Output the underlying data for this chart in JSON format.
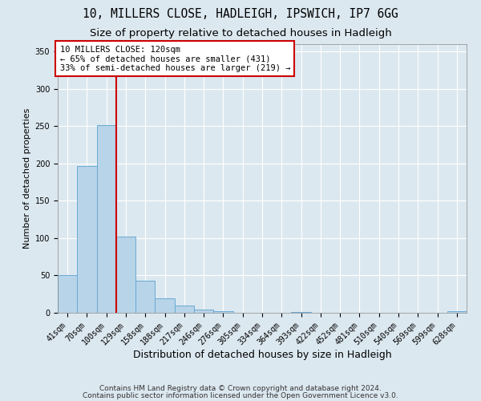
{
  "title1": "10, MILLERS CLOSE, HADLEIGH, IPSWICH, IP7 6GG",
  "title2": "Size of property relative to detached houses in Hadleigh",
  "xlabel": "Distribution of detached houses by size in Hadleigh",
  "ylabel": "Number of detached properties",
  "bar_labels": [
    "41sqm",
    "70sqm",
    "100sqm",
    "129sqm",
    "158sqm",
    "188sqm",
    "217sqm",
    "246sqm",
    "276sqm",
    "305sqm",
    "334sqm",
    "364sqm",
    "393sqm",
    "422sqm",
    "452sqm",
    "481sqm",
    "510sqm",
    "540sqm",
    "569sqm",
    "599sqm",
    "628sqm"
  ],
  "bar_values": [
    50,
    197,
    252,
    102,
    43,
    19,
    10,
    4,
    2,
    0,
    0,
    0,
    1,
    0,
    0,
    0,
    0,
    0,
    0,
    0,
    2
  ],
  "bar_color": "#b8d4e8",
  "bar_edge_color": "#6aaad4",
  "vline_color": "#cc0000",
  "vline_x_idx": 2.5,
  "ylim": [
    0,
    360
  ],
  "yticks": [
    0,
    50,
    100,
    150,
    200,
    250,
    300,
    350
  ],
  "annotation_title": "10 MILLERS CLOSE: 120sqm",
  "annotation_line1": "← 65% of detached houses are smaller (431)",
  "annotation_line2": "33% of semi-detached houses are larger (219) →",
  "annotation_box_color": "#ffffff",
  "annotation_box_edge": "#cc0000",
  "footer1": "Contains HM Land Registry data © Crown copyright and database right 2024.",
  "footer2": "Contains public sector information licensed under the Open Government Licence v3.0.",
  "background_color": "#dce8f0",
  "plot_bg_color": "#dce8f0",
  "grid_color": "#ffffff",
  "title1_fontsize": 10.5,
  "title2_fontsize": 9.5,
  "xlabel_fontsize": 9,
  "ylabel_fontsize": 8,
  "tick_fontsize": 7,
  "annotation_fontsize": 7.5,
  "footer_fontsize": 6.5
}
